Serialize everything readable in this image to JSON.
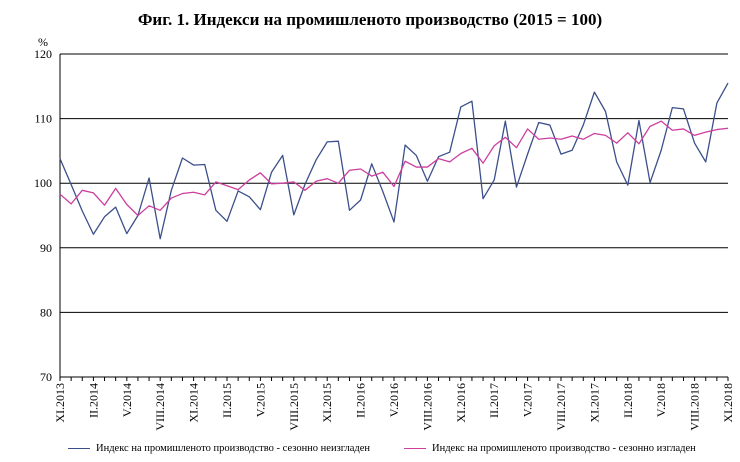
{
  "chart_data": {
    "type": "line",
    "title": "Фиг. 1. Индекси на промишленото производство (2015 = 100)",
    "ylabel": "%",
    "ylim": [
      70,
      120
    ],
    "yticks": [
      70,
      80,
      90,
      100,
      110,
      120
    ],
    "grid": true,
    "legend_placement": "bottom",
    "x": [
      "XI.2013",
      "XII.2013",
      "I.2014",
      "II.2014",
      "III.2014",
      "IV.2014",
      "V.2014",
      "VI.2014",
      "VII.2014",
      "VIII.2014",
      "IX.2014",
      "X.2014",
      "XI.2014",
      "XII.2014",
      "I.2015",
      "II.2015",
      "III.2015",
      "IV.2015",
      "V.2015",
      "VI.2015",
      "VII.2015",
      "VIII.2015",
      "IX.2015",
      "X.2015",
      "XI.2015",
      "XII.2015",
      "I.2016",
      "II.2016",
      "III.2016",
      "IV.2016",
      "V.2016",
      "VI.2016",
      "VII.2016",
      "VIII.2016",
      "IX.2016",
      "X.2016",
      "XI.2016",
      "XII.2016",
      "I.2017",
      "II.2017",
      "III.2017",
      "IV.2017",
      "V.2017",
      "VI.2017",
      "VII.2017",
      "VIII.2017",
      "IX.2017",
      "X.2017",
      "XI.2017",
      "XII.2017",
      "I.2018",
      "II.2018",
      "III.2018",
      "IV.2018",
      "V.2018",
      "VI.2018",
      "VII.2018",
      "VIII.2018",
      "IX.2018",
      "X.2018",
      "XI.2018"
    ],
    "xtick_labels": [
      "XI.2013",
      "II.2014",
      "V.2014",
      "VIII.2014",
      "XI.2014",
      "II.2015",
      "V.2015",
      "VIII.2015",
      "XI.2015",
      "II.2016",
      "V.2016",
      "VIII.2016",
      "XI.2016",
      "II.2017",
      "V.2017",
      "VIII.2017",
      "XI.2017",
      "II.2018",
      "V.2018",
      "VIII.2018",
      "XI.2018"
    ],
    "series": [
      {
        "name": "Индекс на промишленото производство - сезонно неизгладен",
        "color": "#3c4f8a",
        "values": [
          103.8,
          99.8,
          95.7,
          92.1,
          94.8,
          96.3,
          92.2,
          95.0,
          100.8,
          91.4,
          98.9,
          103.9,
          102.8,
          102.9,
          95.8,
          94.1,
          98.8,
          97.9,
          95.9,
          101.7,
          104.3,
          95.1,
          99.8,
          103.6,
          106.4,
          106.5,
          95.8,
          97.4,
          103.0,
          98.7,
          94.0,
          105.9,
          104.3,
          100.3,
          104.1,
          104.8,
          111.8,
          112.7,
          97.6,
          100.5,
          109.6,
          99.4,
          104.5,
          109.4,
          109.0,
          104.5,
          105.1,
          109.0,
          114.1,
          111.1,
          103.3,
          99.7,
          109.7,
          100.1,
          105.1,
          111.7,
          111.5,
          106.2,
          103.3,
          112.4,
          115.5
        ]
      },
      {
        "name": "Индекс на промишленото производство - сезонно изгладен",
        "color": "#cc3f9e",
        "values": [
          98.3,
          96.8,
          98.9,
          98.5,
          96.6,
          99.2,
          96.7,
          95.0,
          96.5,
          95.8,
          97.7,
          98.4,
          98.6,
          98.2,
          100.2,
          99.6,
          99.0,
          100.5,
          101.6,
          99.9,
          100.0,
          100.2,
          98.9,
          100.3,
          100.7,
          100.0,
          102.0,
          102.2,
          101.1,
          101.7,
          99.5,
          103.4,
          102.5,
          102.5,
          103.8,
          103.3,
          104.6,
          105.4,
          103.1,
          105.8,
          107.1,
          105.5,
          108.4,
          106.8,
          107.0,
          106.8,
          107.3,
          106.8,
          107.7,
          107.4,
          106.2,
          107.8,
          106.1,
          108.8,
          109.6,
          108.2,
          108.4,
          107.4,
          107.9,
          108.3,
          108.5
        ]
      }
    ]
  }
}
